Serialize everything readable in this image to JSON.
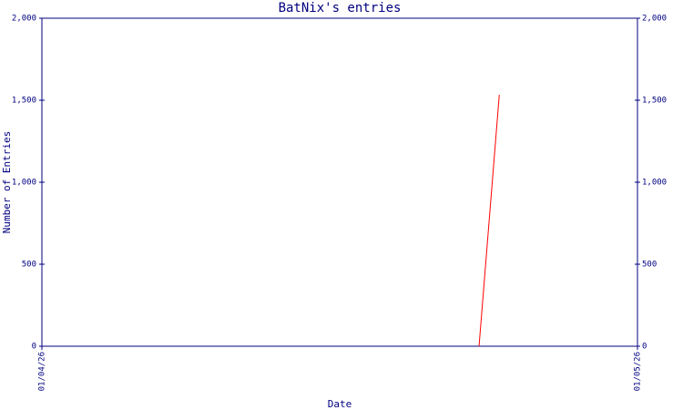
{
  "chart_data": {
    "type": "line",
    "title": "BatNix's entries",
    "x_label": "Date",
    "y_label": "Number of Entries",
    "x": [
      0.734,
      0.768
    ],
    "series": [
      {
        "name": "entries",
        "color": "#ff0000",
        "values": [
          0,
          1533
        ]
      }
    ],
    "xlim": [
      0,
      1
    ],
    "xticks": [
      {
        "value": 0,
        "label": "01/04/26"
      },
      {
        "value": 1,
        "label": "01/05/26"
      }
    ],
    "ylim": [
      0,
      2000
    ],
    "yticks": [
      0,
      500,
      {
        "value": 1000,
        "label": "1,000"
      },
      {
        "value": 1500,
        "label": "1,500"
      },
      {
        "value": 2000,
        "label": "2,000"
      }
    ],
    "grid": false,
    "axis_color": "#000080"
  }
}
